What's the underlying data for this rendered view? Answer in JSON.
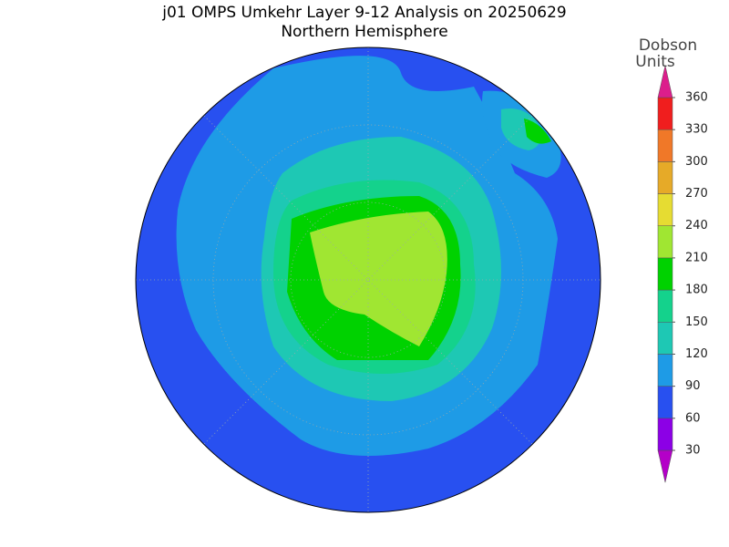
{
  "title": "j01 OMPS Umkehr Layer 9-12 Analysis on 20250629",
  "subtitle": "Northern Hemisphere",
  "colorbar": {
    "label": [
      "Dobson",
      "Units"
    ],
    "ticks": [
      30,
      60,
      90,
      120,
      150,
      180,
      210,
      240,
      270,
      300,
      330,
      360
    ],
    "colors": [
      "#b400c8",
      "#8c00e6",
      "#2850f0",
      "#1e9be6",
      "#1ec8b4",
      "#14d28c",
      "#00d200",
      "#a0e632",
      "#e6dc32",
      "#e6aa28",
      "#f07828",
      "#f01e1e",
      "#dc1e8c"
    ]
  }
}
